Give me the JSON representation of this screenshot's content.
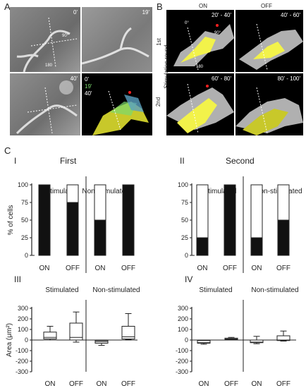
{
  "panel_a": {
    "letter": "A",
    "times": [
      "0'",
      "19'",
      "40'"
    ],
    "legend": [
      "0'",
      "19'",
      "40'"
    ],
    "legend_colors": [
      "#d8d8d8",
      "#7bd86d",
      "#ffffff"
    ],
    "scale_labels": [
      "90°",
      "180"
    ]
  },
  "panel_b": {
    "letter": "B",
    "on_label": "ON",
    "off_label": "OFF",
    "side_label": "Stimulation round",
    "rounds": [
      "1st",
      "2nd"
    ],
    "times": [
      "20' - 40'",
      "40' - 60'",
      "60' - 80'",
      "80' - 100'"
    ],
    "angles": [
      "0°",
      "90°",
      "180"
    ]
  },
  "panel_c": {
    "letter": "C",
    "colors": {
      "filled": "#111111",
      "empty": "#ffffff",
      "box": "#ffffff"
    },
    "chart_data": [
      {
        "type": "bar",
        "roman": "I",
        "title": "First",
        "ylabel": "% of cells",
        "ylim": [
          0,
          100
        ],
        "yticks": [
          0,
          25,
          50,
          75,
          100
        ],
        "groups": [
          "Stimulated",
          "Non-stimulated"
        ],
        "categories": [
          "ON",
          "OFF",
          "ON",
          "OFF"
        ],
        "filled_values": [
          100,
          75,
          50,
          100
        ]
      },
      {
        "type": "bar",
        "roman": "II",
        "title": "Second",
        "ylabel": "",
        "ylim": [
          0,
          100
        ],
        "yticks": [
          0,
          25,
          50,
          75,
          100
        ],
        "groups": [
          "Stimulated",
          "Non-stimulated"
        ],
        "categories": [
          "ON",
          "OFF",
          "ON",
          "OFF"
        ],
        "filled_values": [
          25,
          100,
          25,
          50
        ]
      },
      {
        "type": "box",
        "roman": "III",
        "ylabel": "Area (μm²)",
        "ylim": [
          -300,
          300
        ],
        "yticks": [
          300,
          200,
          100,
          0,
          -100,
          -200,
          -300
        ],
        "groups": [
          "Stimulated",
          "Non-stimulated"
        ],
        "categories": [
          "ON",
          "OFF",
          "ON",
          "OFF"
        ],
        "boxes": [
          {
            "min": 0,
            "q1": 10,
            "median": 25,
            "q3": 75,
            "max": 130
          },
          {
            "min": -20,
            "q1": 0,
            "median": 25,
            "q3": 160,
            "max": 265
          },
          {
            "min": -50,
            "q1": -30,
            "median": -15,
            "q3": -5,
            "max": 0
          },
          {
            "min": 5,
            "q1": 10,
            "median": 30,
            "q3": 130,
            "max": 250
          }
        ]
      },
      {
        "type": "box",
        "roman": "IV",
        "ylabel": "",
        "ylim": [
          -300,
          300
        ],
        "yticks": [
          300,
          200,
          100,
          0,
          -100,
          -200,
          -300
        ],
        "groups": [
          "Stimulated",
          "Non-stimulated"
        ],
        "categories": [
          "ON",
          "OFF",
          "ON",
          "OFF"
        ],
        "boxes": [
          {
            "min": -40,
            "q1": -30,
            "median": -25,
            "q3": -5,
            "max": 0
          },
          {
            "min": 0,
            "q1": 5,
            "median": 10,
            "q3": 18,
            "max": 25
          },
          {
            "min": -35,
            "q1": -25,
            "median": -20,
            "q3": 0,
            "max": 35
          },
          {
            "min": -10,
            "q1": -5,
            "median": 0,
            "q3": 40,
            "max": 85
          }
        ]
      }
    ]
  }
}
